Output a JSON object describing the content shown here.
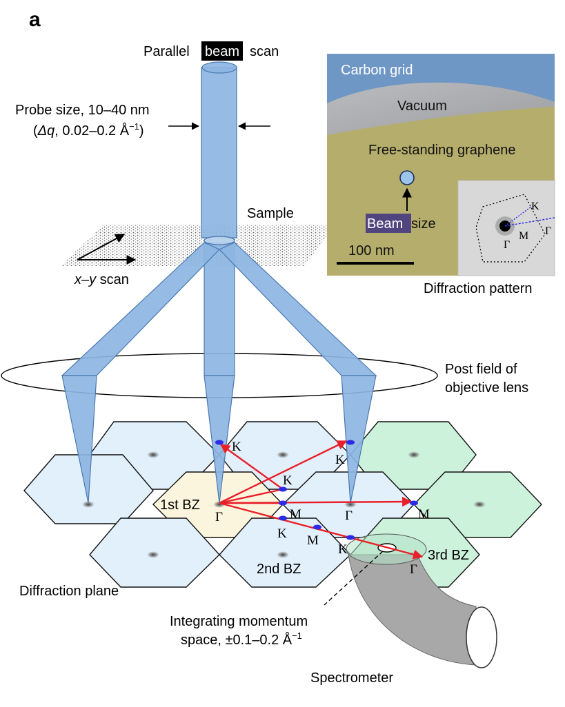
{
  "panel_letter": "a",
  "top_label": {
    "pre": "Parallel",
    "highlight": "beam",
    "post": "scan"
  },
  "probe": {
    "line1": "Probe size, 10–40 nm",
    "line2_open": "(",
    "line2_delta": "Δq",
    "line2_rest": ", 0.02–0.2 Å",
    "line2_sup": "−1",
    "line2_close": ")"
  },
  "sample_label": "Sample",
  "xy_scan": {
    "x": "x",
    "dash": "–",
    "y": "y",
    "rest": " scan"
  },
  "inset": {
    "carbon_grid": "Carbon grid",
    "vacuum": "Vacuum",
    "graphene": "Free-standing graphene",
    "beam_highlight": "Beam",
    "beam_rest": " size",
    "scale_bar": "100 nm",
    "caption": "Diffraction pattern",
    "dp_K": "K",
    "dp_M": "M",
    "dp_Gamma": "Γ",
    "dp_Gamma2": "Γ"
  },
  "lens_label": {
    "line1": "Post field of",
    "line2": "objective lens"
  },
  "plane": {
    "bz1": "1st BZ",
    "bz2": "2nd BZ",
    "bz3": "3rd BZ",
    "diffraction_plane": "Diffraction plane",
    "points": {
      "K_a": "K",
      "K_b": "K",
      "K_c": "K",
      "K_d": "K",
      "K_e": "K",
      "Gamma_a": "Γ",
      "Gamma_b": "Γ",
      "Gamma_c": "Γ",
      "M_a": "M",
      "M_b": "M",
      "M_c": "M"
    }
  },
  "integrating": {
    "line1": "Integrating momentum",
    "line2": "space, ±0.1–0.2 Å",
    "sup": "−1"
  },
  "spectrometer": "Spectrometer",
  "colors": {
    "beam_fill": "#8db5e2",
    "beam_stroke": "#4a78b0",
    "bz1_fill": "#fcf5dd",
    "bz2_fill": "#e2f0fb",
    "bz3_fill": "#cdf2dc",
    "arrow": "#e8202a",
    "dot": "#2c2ce8",
    "carbon_grid": "#6f97c6",
    "vacuum": "#a9aaac",
    "graphene": "#b5ad6b",
    "beam_label_bg": "#51457f",
    "spectrometer": "#a8a8a8"
  }
}
